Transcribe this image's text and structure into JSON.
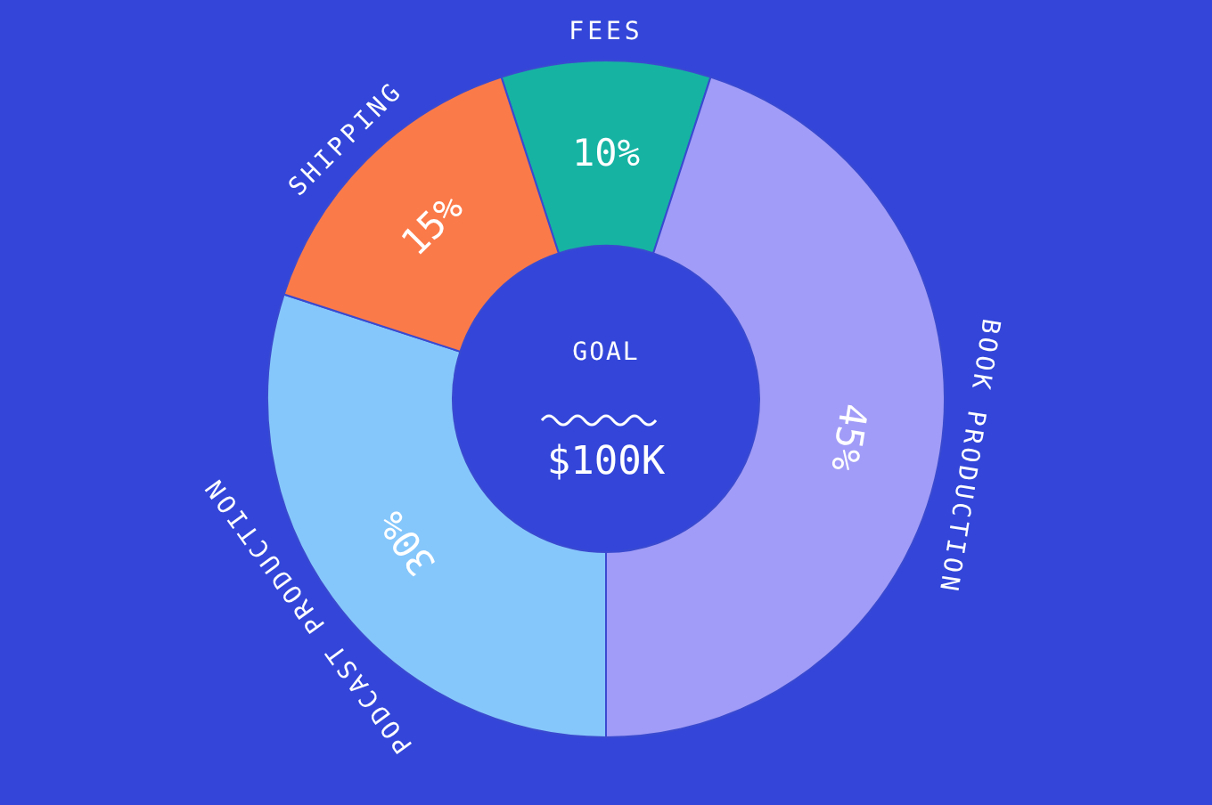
{
  "chart_data": {
    "type": "donut",
    "categories": [
      "FEES",
      "BOOK PRODUCTION",
      "PODCAST PRODUCTION",
      "SHIPPING"
    ],
    "values": [
      10,
      45,
      30,
      15
    ],
    "value_labels": [
      "10%",
      "45%",
      "30%",
      "15%"
    ],
    "colors": [
      "#16b3a3",
      "#a19cf7",
      "#86c7fb",
      "#fb7a4a"
    ],
    "annotations": [
      "GOAL",
      "$100K"
    ]
  }
}
